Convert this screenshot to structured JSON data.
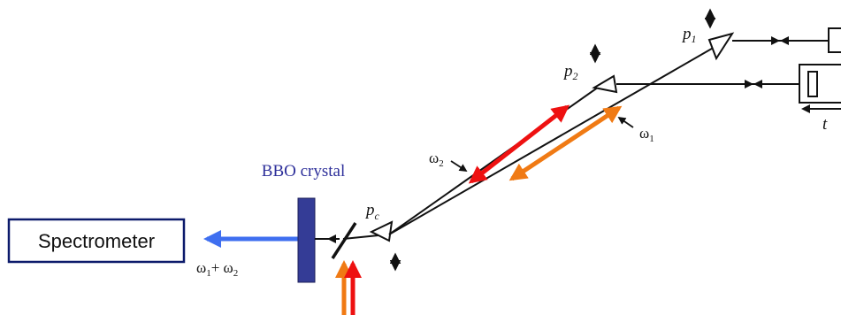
{
  "diagram": {
    "spectrometer_label": "Spectrometer",
    "crystal_label": "BBO crystal",
    "sum_frequency": {
      "w1": "ω",
      "s1": "1",
      "plus": "+ ω",
      "s2": "2"
    },
    "omega2": {
      "w": "ω",
      "s": "2"
    },
    "omega1": {
      "w": "ω",
      "s": "1"
    },
    "prism_pc": {
      "p": "p",
      "s": "c"
    },
    "prism_p2": {
      "p": "p",
      "s": "2"
    },
    "prism_p1": {
      "p": "p",
      "s": "1"
    },
    "delay_label": "t",
    "colors": {
      "spectrometer_border": "#0c1a6b",
      "crystal": "#343c96",
      "crystal_label": "#2d2f9a",
      "blue_beam": "#3f6ff0",
      "red_beam": "#ee1111",
      "orange_beam": "#f07a14",
      "line": "#111111"
    }
  }
}
